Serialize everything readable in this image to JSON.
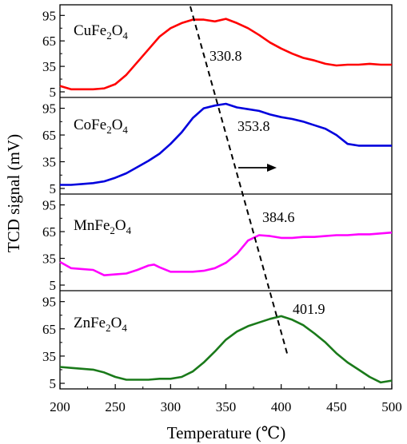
{
  "chart_data": {
    "type": "line",
    "ylabel": "TCD signal (mV)",
    "xlabel": "Temperature (℃)",
    "xlim": [
      200,
      500
    ],
    "x_ticks": [
      "200",
      "250",
      "300",
      "350",
      "400",
      "450",
      "500"
    ],
    "ylim": [
      5,
      100
    ],
    "y_ticks": [
      "5",
      "35",
      "65",
      "95"
    ],
    "panels": [
      {
        "name": "CuFe2O4",
        "name_base": "CuFe",
        "name_sub": "2",
        "name_tail": "O",
        "name_sub2": "4",
        "color": "#ff0000",
        "peak_label": "330.8",
        "x": [
          200,
          210,
          220,
          230,
          240,
          250,
          260,
          270,
          280,
          290,
          300,
          310,
          320,
          330,
          340,
          350,
          360,
          370,
          380,
          390,
          400,
          410,
          420,
          430,
          440,
          450,
          460,
          470,
          480,
          490,
          500
        ],
        "y": [
          12,
          8,
          8,
          8,
          9,
          14,
          25,
          40,
          55,
          70,
          80,
          86,
          90,
          90,
          88,
          91,
          86,
          80,
          72,
          63,
          56,
          50,
          45,
          42,
          38,
          36,
          37,
          37,
          38,
          37,
          37
        ]
      },
      {
        "name": "CoFe2O4",
        "name_base": "CoFe",
        "name_sub": "2",
        "name_tail": "O",
        "name_sub2": "4",
        "color": "#0000dd",
        "peak_label": "353.8",
        "x": [
          200,
          210,
          220,
          230,
          240,
          250,
          260,
          270,
          280,
          290,
          300,
          310,
          320,
          330,
          340,
          350,
          360,
          370,
          380,
          390,
          400,
          410,
          420,
          430,
          440,
          450,
          460,
          470,
          480,
          490,
          500
        ],
        "y": [
          9,
          9,
          10,
          11,
          13,
          17,
          22,
          29,
          36,
          44,
          55,
          68,
          84,
          95,
          98,
          100,
          96,
          94,
          92,
          88,
          85,
          83,
          80,
          76,
          72,
          65,
          55,
          53,
          53,
          53,
          53
        ],
        "arrow": true
      },
      {
        "name": "MnFe2O4",
        "name_base": "MnFe",
        "name_sub": "2",
        "name_tail": "O",
        "name_sub2": "4",
        "color": "#ff00ff",
        "peak_label": "384.6",
        "x": [
          200,
          210,
          220,
          230,
          240,
          250,
          260,
          270,
          280,
          285,
          290,
          300,
          310,
          320,
          330,
          340,
          350,
          360,
          370,
          380,
          390,
          400,
          410,
          420,
          430,
          440,
          450,
          460,
          470,
          480,
          490,
          500
        ],
        "y": [
          31,
          24,
          23,
          22,
          16,
          17,
          18,
          22,
          27,
          28,
          25,
          20,
          20,
          20,
          21,
          24,
          30,
          40,
          55,
          61,
          60,
          58,
          58,
          59,
          59,
          60,
          61,
          61,
          62,
          62,
          63,
          64
        ]
      },
      {
        "name": "ZnFe2O4",
        "name_base": "ZnFe",
        "name_sub": "2",
        "name_tail": "O",
        "name_sub2": "4",
        "color": "#1a7a1a",
        "peak_label": "401.9",
        "x": [
          200,
          210,
          220,
          230,
          240,
          250,
          260,
          270,
          280,
          290,
          300,
          310,
          320,
          330,
          340,
          350,
          360,
          370,
          380,
          390,
          400,
          410,
          420,
          430,
          440,
          450,
          460,
          470,
          480,
          490,
          500
        ],
        "y": [
          23,
          22,
          21,
          20,
          17,
          12,
          9,
          9,
          9,
          10,
          10,
          12,
          18,
          28,
          40,
          53,
          62,
          68,
          72,
          76,
          79,
          75,
          69,
          60,
          50,
          38,
          28,
          20,
          12,
          6,
          8
        ]
      }
    ]
  }
}
